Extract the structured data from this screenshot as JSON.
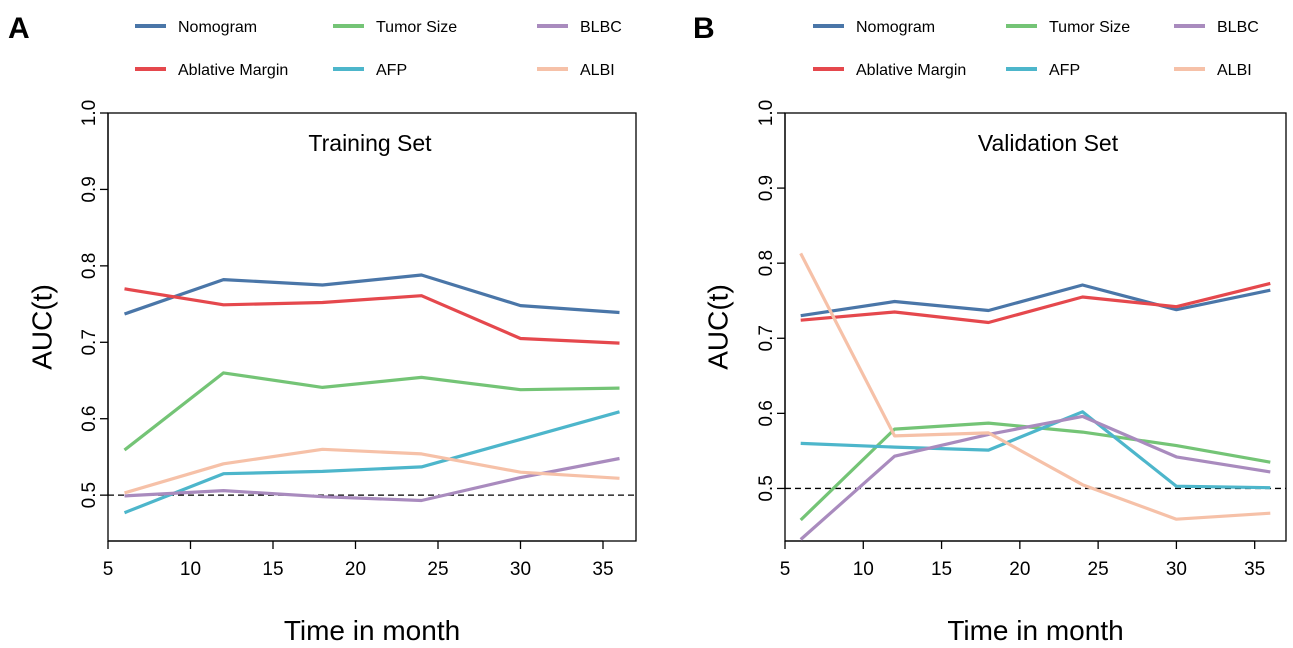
{
  "legend": {
    "entries": [
      {
        "name": "Nomogram",
        "color": "#4A76A8"
      },
      {
        "name": "Ablative Margin",
        "color": "#E5484D"
      },
      {
        "name": "Tumor Size",
        "color": "#74C476"
      },
      {
        "name": "AFP",
        "color": "#4DB6CB"
      },
      {
        "name": "BLBC",
        "color": "#A98BBE"
      },
      {
        "name": "ALBI",
        "color": "#F6C1A8"
      }
    ]
  },
  "chart_data": [
    {
      "panel_label": "A",
      "type": "line",
      "title": "Training Set",
      "xlabel": "Time in month",
      "ylabel": "AUC(t)",
      "xlim": [
        5,
        37
      ],
      "ylim": [
        0.44,
        1.0
      ],
      "xticks": [
        5,
        10,
        15,
        20,
        25,
        30,
        35
      ],
      "yticks": [
        0.5,
        0.6,
        0.7,
        0.8,
        0.9,
        1.0
      ],
      "reference_line": {
        "y": 0.5,
        "style": "dashed"
      },
      "x": [
        6,
        12,
        18,
        24,
        30,
        36
      ],
      "series": [
        {
          "name": "Nomogram",
          "color": "#4A76A8",
          "values": [
            0.737,
            0.782,
            0.775,
            0.788,
            0.748,
            0.739
          ]
        },
        {
          "name": "Ablative Margin",
          "color": "#E5484D",
          "values": [
            0.77,
            0.749,
            0.752,
            0.761,
            0.705,
            0.699
          ]
        },
        {
          "name": "Tumor Size",
          "color": "#74C476",
          "values": [
            0.559,
            0.66,
            0.641,
            0.654,
            0.638,
            0.64
          ]
        },
        {
          "name": "AFP",
          "color": "#4DB6CB",
          "values": [
            0.477,
            0.528,
            0.531,
            0.537,
            0.573,
            0.609
          ]
        },
        {
          "name": "BLBC",
          "color": "#A98BBE",
          "values": [
            0.499,
            0.506,
            0.498,
            0.493,
            0.523,
            0.548
          ]
        },
        {
          "name": "ALBI",
          "color": "#F6C1A8",
          "values": [
            0.503,
            0.541,
            0.56,
            0.554,
            0.53,
            0.522
          ]
        }
      ]
    },
    {
      "panel_label": "B",
      "type": "line",
      "title": "Validation Set",
      "xlabel": "Time in month",
      "ylabel": "AUC(t)",
      "xlim": [
        5,
        37
      ],
      "ylim": [
        0.43,
        1.0
      ],
      "xticks": [
        5,
        10,
        15,
        20,
        25,
        30,
        35
      ],
      "yticks": [
        0.5,
        0.6,
        0.7,
        0.8,
        0.9,
        1.0
      ],
      "reference_line": {
        "y": 0.5,
        "style": "dashed"
      },
      "x": [
        6,
        12,
        18,
        24,
        30,
        36
      ],
      "series": [
        {
          "name": "Nomogram",
          "color": "#4A76A8",
          "values": [
            0.73,
            0.749,
            0.737,
            0.771,
            0.738,
            0.764
          ]
        },
        {
          "name": "Ablative Margin",
          "color": "#E5484D",
          "values": [
            0.724,
            0.735,
            0.721,
            0.755,
            0.742,
            0.773
          ]
        },
        {
          "name": "Tumor Size",
          "color": "#74C476",
          "values": [
            0.458,
            0.579,
            0.587,
            0.575,
            0.557,
            0.535
          ]
        },
        {
          "name": "AFP",
          "color": "#4DB6CB",
          "values": [
            0.56,
            0.555,
            0.551,
            0.602,
            0.503,
            0.501
          ]
        },
        {
          "name": "BLBC",
          "color": "#A98BBE",
          "values": [
            0.432,
            0.543,
            0.572,
            0.596,
            0.542,
            0.522
          ]
        },
        {
          "name": "ALBI",
          "color": "#F6C1A8",
          "values": [
            0.813,
            0.57,
            0.574,
            0.505,
            0.459,
            0.467
          ]
        }
      ]
    }
  ]
}
